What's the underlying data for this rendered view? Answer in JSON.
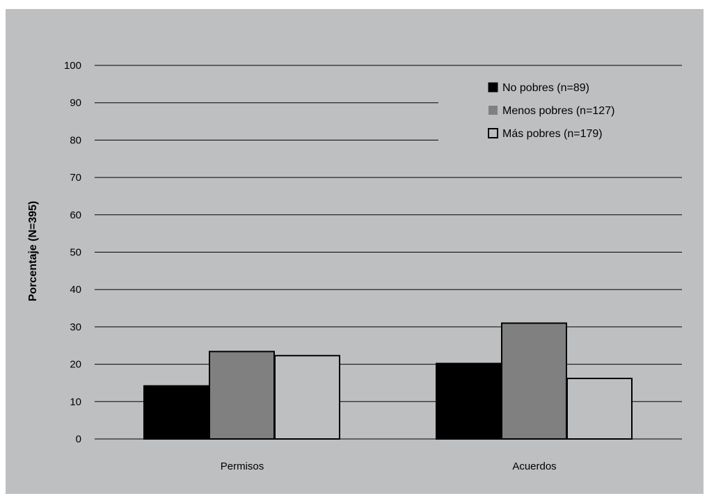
{
  "chart_data": {
    "type": "bar",
    "categories": [
      "Permisos",
      "Acuerdos"
    ],
    "series": [
      {
        "name": "No pobres (n=89)",
        "values": [
          14.2,
          20.2
        ],
        "color": "#000000"
      },
      {
        "name": "Menos pobres (n=127)",
        "values": [
          23.4,
          31.0
        ],
        "color": "#808080"
      },
      {
        "name": "Más pobres (n=179)",
        "values": [
          22.3,
          16.2
        ],
        "color": "#bebfc1"
      }
    ],
    "title": "",
    "xlabel": "",
    "ylabel": "Porcentaje  (N=395)",
    "ylim": [
      0,
      100
    ],
    "yticks": [
      0,
      10,
      20,
      30,
      40,
      50,
      60,
      70,
      80,
      90,
      100
    ],
    "grid": true,
    "legend_position": "top-right",
    "background_color": "#bebfc1"
  }
}
